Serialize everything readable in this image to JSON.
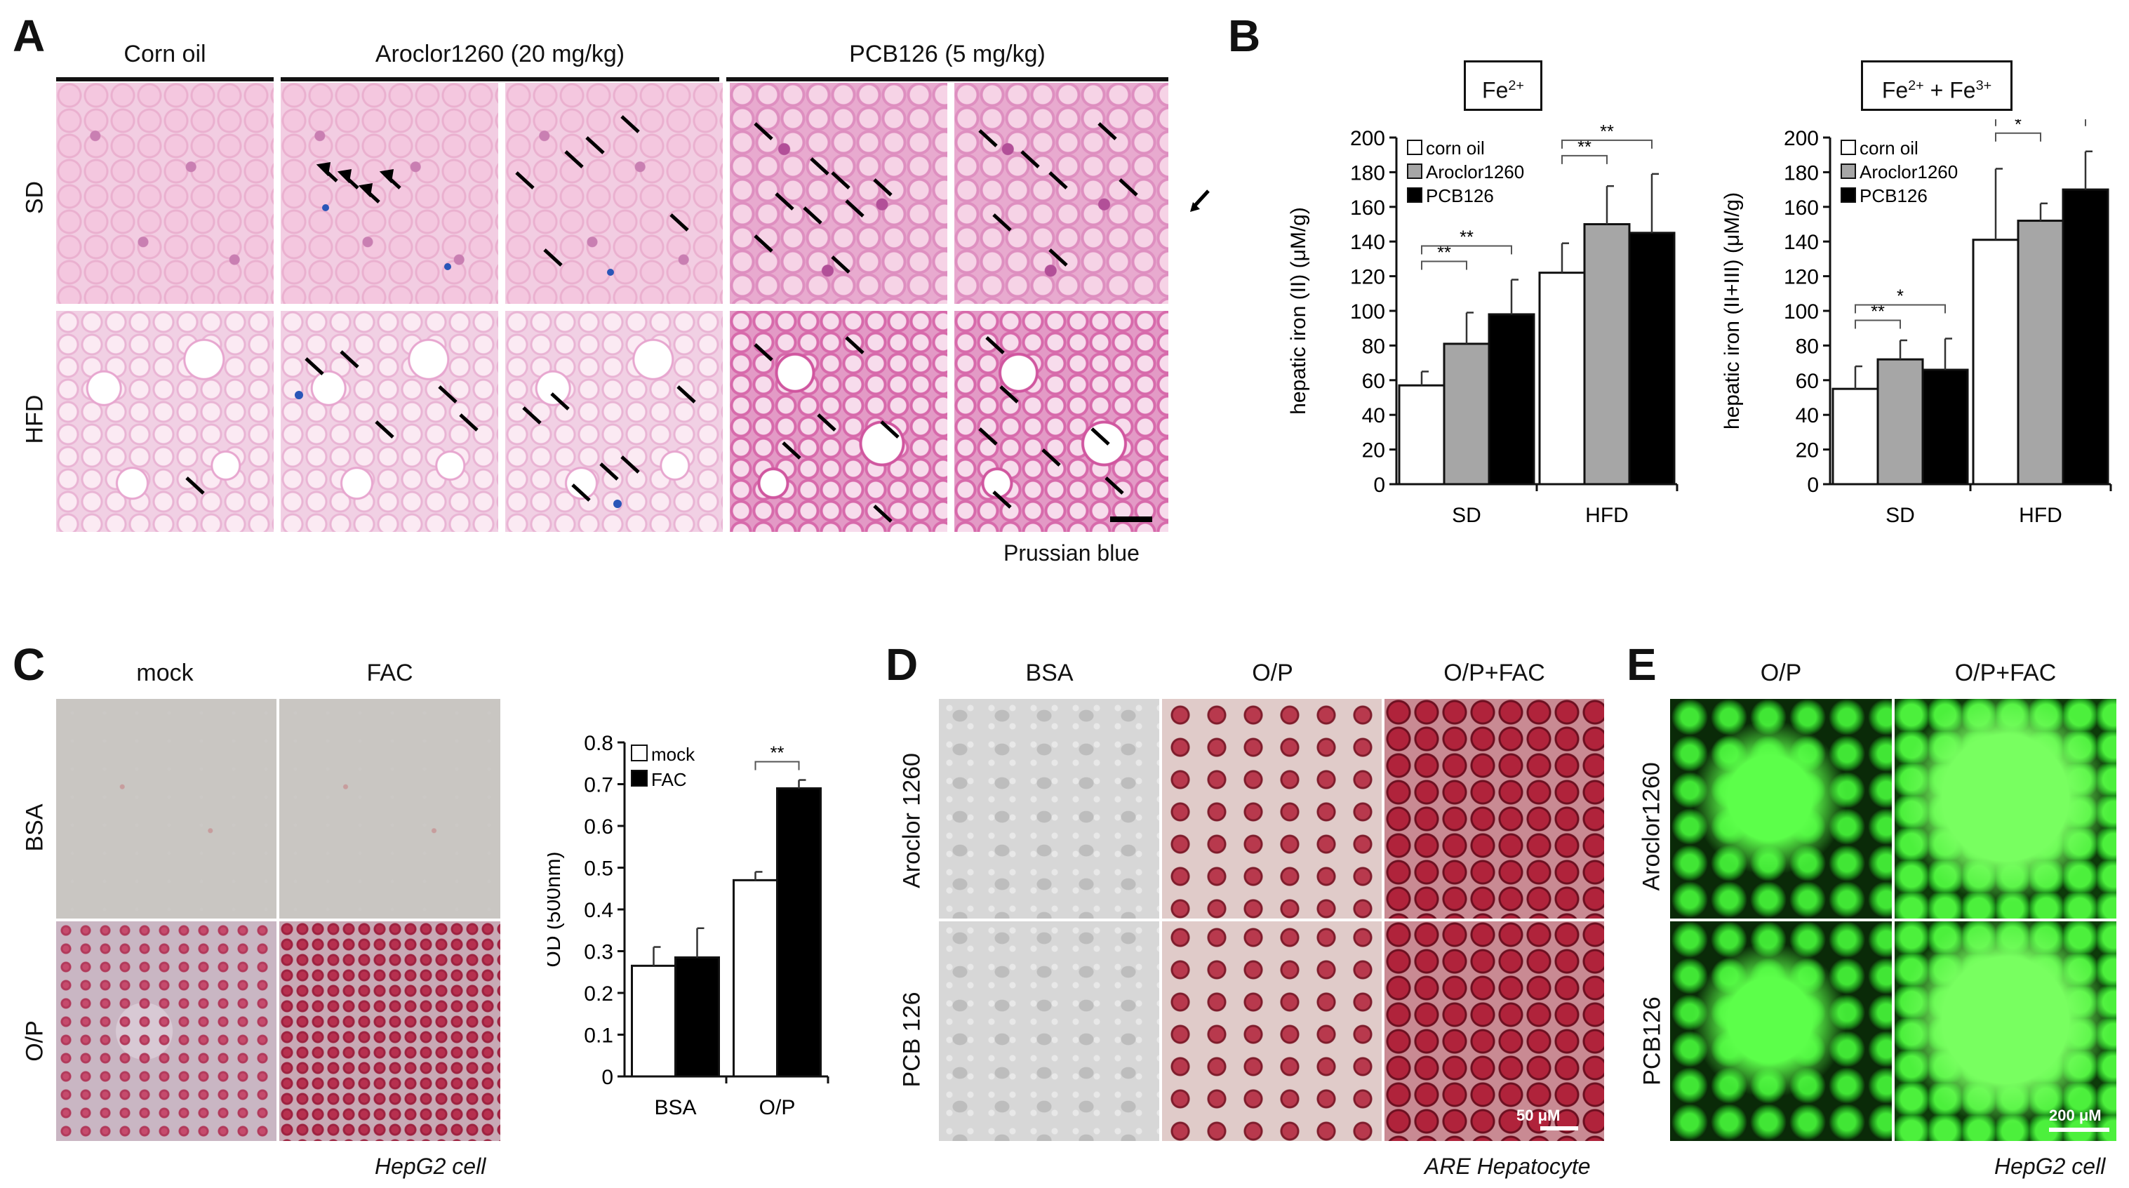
{
  "panels": {
    "A": {
      "label": "A",
      "col_headers": [
        "Corn oil",
        "Aroclor1260 (20 mg/kg)",
        "PCB126 (5 mg/kg)"
      ],
      "row_labels": [
        "SD",
        "HFD"
      ],
      "stain_caption": "Prussian blue"
    },
    "B": {
      "label": "B",
      "fe2_box": "Fe",
      "fe2_sup": "2+",
      "fe23_box_a": "Fe",
      "fe23_box_sup_a": "2+",
      "fe23_box_mid": " + Fe",
      "fe23_box_sup_b": "3+"
    },
    "C": {
      "label": "C",
      "col_headers": [
        "mock",
        "FAC"
      ],
      "row_labels": [
        "BSA",
        "O/P"
      ],
      "caption": "HepG2 cell"
    },
    "D": {
      "label": "D",
      "col_headers": [
        "BSA",
        "O/P",
        "O/P+FAC"
      ],
      "row_labels": [
        "Aroclor 1260",
        "PCB 126"
      ],
      "scalebar": "50 μM",
      "caption": "ARE Hepatocyte"
    },
    "E": {
      "label": "E",
      "col_headers": [
        "O/P",
        "O/P+FAC"
      ],
      "row_labels": [
        "Aroclor1260",
        "PCB126"
      ],
      "scalebar": "200 μM",
      "caption": "HepG2 cell"
    }
  },
  "chart_data": [
    {
      "type": "bar",
      "panel": "B-left",
      "title": "Fe2+",
      "ylabel": "hepatic iron (II) (μM/g)",
      "ylim": [
        0,
        200
      ],
      "yticks": [
        0,
        20,
        40,
        60,
        80,
        100,
        120,
        140,
        160,
        180,
        200
      ],
      "categories": [
        "SD",
        "HFD"
      ],
      "legend": "top-left",
      "series": [
        {
          "name": "corn oil",
          "color": "#ffffff",
          "values": [
            57,
            122
          ],
          "errors": [
            8,
            17
          ]
        },
        {
          "name": "Aroclor1260",
          "color": "#a6a6a6",
          "values": [
            81,
            150
          ],
          "errors": [
            18,
            22
          ]
        },
        {
          "name": "PCB126",
          "color": "#000000",
          "values": [
            98,
            145
          ],
          "errors": [
            20,
            34
          ]
        }
      ],
      "significance": [
        {
          "group": "SD",
          "from": 0,
          "to": 1,
          "label": "**"
        },
        {
          "group": "SD",
          "from": 0,
          "to": 2,
          "label": "**"
        },
        {
          "group": "HFD",
          "from": 0,
          "to": 1,
          "label": "**"
        },
        {
          "group": "HFD",
          "from": 0,
          "to": 2,
          "label": "**"
        }
      ]
    },
    {
      "type": "bar",
      "panel": "B-right",
      "title": "Fe2+ + Fe3+",
      "ylabel": "hepatic iron (II+III) (μM/g)",
      "ylim": [
        0,
        200
      ],
      "yticks": [
        0,
        20,
        40,
        60,
        80,
        100,
        120,
        140,
        160,
        180,
        200
      ],
      "categories": [
        "SD",
        "HFD"
      ],
      "legend": "top-left",
      "series": [
        {
          "name": "corn oil",
          "color": "#ffffff",
          "values": [
            55,
            141
          ],
          "errors": [
            13,
            41
          ]
        },
        {
          "name": "Aroclor1260",
          "color": "#a6a6a6",
          "values": [
            72,
            152
          ],
          "errors": [
            11,
            10
          ]
        },
        {
          "name": "PCB126",
          "color": "#000000",
          "values": [
            66,
            170
          ],
          "errors": [
            18,
            22
          ]
        }
      ],
      "significance": [
        {
          "group": "SD",
          "from": 0,
          "to": 1,
          "label": "**"
        },
        {
          "group": "SD",
          "from": 0,
          "to": 2,
          "label": "*"
        },
        {
          "group": "HFD",
          "from": 0,
          "to": 1,
          "label": "*"
        },
        {
          "group": "HFD",
          "from": 0,
          "to": 2,
          "label": "**"
        }
      ]
    },
    {
      "type": "bar",
      "panel": "C",
      "ylabel": "OD (500nm)",
      "ylim": [
        0,
        0.8
      ],
      "yticks": [
        0,
        0.1,
        0.2,
        0.3,
        0.4,
        0.5,
        0.6,
        0.7,
        0.8
      ],
      "categories": [
        "BSA",
        "O/P"
      ],
      "legend": "top-left",
      "series": [
        {
          "name": "mock",
          "color": "#ffffff",
          "values": [
            0.265,
            0.47
          ],
          "errors": [
            0.045,
            0.02
          ]
        },
        {
          "name": "FAC",
          "color": "#000000",
          "values": [
            0.285,
            0.69
          ],
          "errors": [
            0.07,
            0.02
          ]
        }
      ],
      "significance": [
        {
          "group": "O/P",
          "from": 0,
          "to": 1,
          "label": "**"
        }
      ]
    }
  ]
}
